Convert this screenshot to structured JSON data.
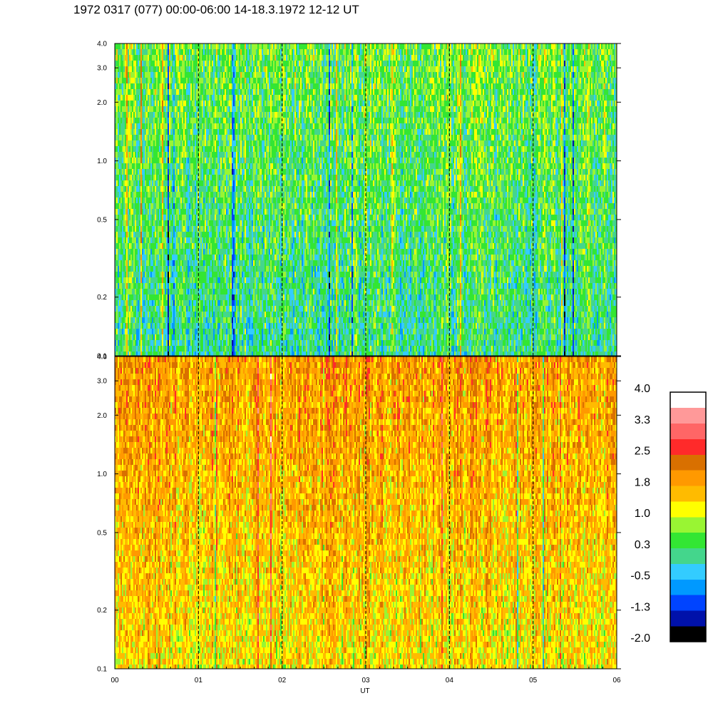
{
  "title": "1972 0317 (077) 00:00-06:00 14-18.3.1972  12-12 UT",
  "chart_data": [
    {
      "type": "heatmap",
      "panel": "upper",
      "x_range": [
        0,
        6
      ],
      "y_scale": "log",
      "ylim": [
        0.1,
        4.0
      ],
      "ytick_labels": [
        "0.1",
        "0.2",
        "0.5",
        "1.0",
        "2.0",
        "3.0",
        "4.0"
      ],
      "yticks": [
        0.1,
        0.2,
        0.5,
        1.0,
        2.0,
        3.0,
        4.0
      ],
      "dominant_level_low": 0.1,
      "dominant_level_high": 0.6,
      "dashed_vertical_lines_x": [
        1,
        2,
        3,
        4,
        5
      ]
    },
    {
      "type": "heatmap",
      "panel": "lower",
      "x_range": [
        0,
        6
      ],
      "y_scale": "log",
      "ylim": [
        0.1,
        4.0
      ],
      "ytick_labels": [
        "0.1",
        "0.2",
        "0.5",
        "1.0",
        "2.0",
        "3.0",
        "4.0"
      ],
      "yticks": [
        0.1,
        0.2,
        0.5,
        1.0,
        2.0,
        3.0,
        4.0
      ],
      "dominant_level_low": 1.3,
      "dominant_level_high": 1.9,
      "dashed_vertical_lines_x": [
        1,
        2,
        3,
        4,
        5
      ]
    }
  ],
  "x_axis": {
    "label": "UT",
    "ticks": [
      0,
      1,
      2,
      3,
      4,
      5,
      6
    ],
    "tick_labels": [
      "00",
      "01",
      "02",
      "03",
      "04",
      "05",
      "06"
    ]
  },
  "colorbar": {
    "range": [
      -2.0,
      4.0
    ],
    "labels": [
      "4.0",
      "3.3",
      "2.5",
      "1.8",
      "1.0",
      "0.3",
      "-0.5",
      "-1.3",
      "-2.0"
    ],
    "colors": [
      "#000000",
      "#0011aa",
      "#0044ff",
      "#0099ff",
      "#33ccff",
      "#44d68c",
      "#33e633",
      "#99f533",
      "#ffff00",
      "#ffbb00",
      "#ff9900",
      "#d97000",
      "#ff2a2a",
      "#ff6666",
      "#ff9999",
      "#ffffff"
    ]
  }
}
